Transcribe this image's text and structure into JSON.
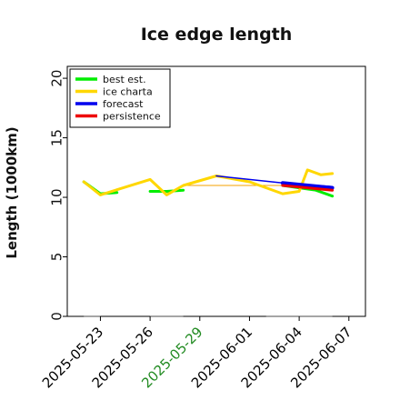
{
  "chart_data": {
    "type": "line",
    "title": "Ice edge length",
    "xlabel": "",
    "ylabel": "Length (1000km)",
    "ylim": [
      0,
      21
    ],
    "xlim": [
      "2025-05-21",
      "2025-06-08"
    ],
    "yticks": [
      0,
      5,
      10,
      15,
      20
    ],
    "xticks": [
      {
        "date": "2025-05-23",
        "label": "2025-05-23",
        "color": "#000000"
      },
      {
        "date": "2025-05-26",
        "label": "2025-05-26",
        "color": "#000000"
      },
      {
        "date": "2025-05-29",
        "label": "2025-05-29",
        "color": "#228b22"
      },
      {
        "date": "2025-06-01",
        "label": "2025-06-01",
        "color": "#000000"
      },
      {
        "date": "2025-06-04",
        "label": "2025-06-04",
        "color": "#000000"
      },
      {
        "date": "2025-06-07",
        "label": "2025-06-07",
        "color": "#000000"
      }
    ],
    "grid": false,
    "legend_position": "top-left",
    "series": [
      {
        "name": "best est.",
        "color": "#00ee00",
        "segments": [
          [
            [
              "2025-05-22",
              11.3
            ],
            [
              "2025-05-23",
              10.3
            ],
            [
              "2025-05-24",
              10.4
            ]
          ],
          [
            [
              "2025-05-26",
              10.5
            ],
            [
              "2025-05-27",
              10.5
            ],
            [
              "2025-05-28",
              10.6
            ]
          ],
          [
            [
              "2025-06-03",
              11.0
            ],
            [
              "2025-06-04",
              10.8
            ],
            [
              "2025-06-05",
              10.6
            ],
            [
              "2025-06-06",
              10.1
            ]
          ]
        ]
      },
      {
        "name": "ice charta",
        "color": "#ffd700",
        "segments": [
          [
            [
              "2025-05-22",
              11.3
            ],
            [
              "2025-05-23",
              10.2
            ],
            [
              "2025-05-26",
              11.5
            ],
            [
              "2025-05-27",
              10.2
            ],
            [
              "2025-05-28",
              11.0
            ],
            [
              "2025-05-30",
              11.8
            ],
            [
              "2025-06-01",
              11.3
            ],
            [
              "2025-06-03",
              10.3
            ],
            [
              "2025-06-04",
              10.5
            ],
            [
              "2025-06-04.5",
              12.3
            ],
            [
              "2025-06-05.3",
              11.9
            ],
            [
              "2025-06-06",
              12.0
            ]
          ]
        ]
      },
      {
        "name": "forecast",
        "color": "#0000ee",
        "segments": [
          [
            [
              "2025-05-30",
              11.8
            ],
            [
              "2025-06-03",
              11.2
            ],
            [
              "2025-06-06",
              10.9
            ]
          ],
          [
            [
              "2025-06-03",
              11.2
            ],
            [
              "2025-06-06",
              10.8
            ]
          ]
        ]
      },
      {
        "name": "persistence",
        "color": "#ee0000",
        "segments": [
          [
            [
              "2025-06-03",
              11.0
            ],
            [
              "2025-06-06",
              10.6
            ]
          ]
        ]
      }
    ],
    "missing_markers": [
      [
        [
          "2025-05-22",
          0
        ],
        [
          "2025-05-23",
          0
        ]
      ],
      [
        [
          "2025-05-26",
          0
        ],
        [
          "2025-05-28",
          0
        ]
      ],
      [
        [
          "2025-06-02",
          0
        ],
        [
          "2025-06-06",
          0
        ]
      ]
    ],
    "extra_lines": [
      {
        "color": "#888888",
        "points": [
          [
            "2025-05-28",
            11.0
          ],
          [
            "2025-06-03",
            11.0
          ]
        ]
      },
      {
        "color": "#f5a000",
        "points": [
          [
            "2025-05-28",
            11.0
          ],
          [
            "2025-06-03",
            11.0
          ]
        ]
      }
    ]
  }
}
